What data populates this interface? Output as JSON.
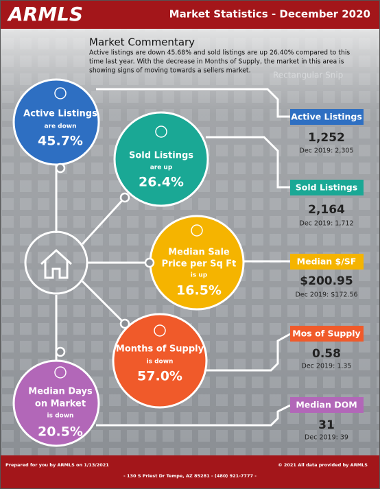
{
  "header": {
    "logo": "ARMLS",
    "title": "Market Statistics - December 2020"
  },
  "commentary": {
    "title": "Market Commentary",
    "lines": [
      "Active listings are down 45.68% and sold listings are up 26.40% compared to this",
      "time last year. With the decrease in Months of Supply, the market in this area is",
      "showing signs of moving towards a sellers market."
    ],
    "overlay": "Rectangular Snip"
  },
  "circles": [
    {
      "label": [
        "Active Listings"
      ],
      "sub": "are down",
      "value": "45.7%"
    },
    {
      "label": [
        "Sold Listings"
      ],
      "sub": "are up",
      "value": "26.4%"
    },
    {
      "label": [
        "Median Sale",
        "Price per Sq Ft"
      ],
      "sub": "is up",
      "value": "16.5%"
    },
    {
      "label": [
        "Months of Supply"
      ],
      "sub": "is down",
      "value": "57.0%"
    },
    {
      "label": [
        "Median Days",
        "on Market"
      ],
      "sub": "is down",
      "value": "20.5%"
    }
  ],
  "stats": [
    {
      "label": "Active Listings",
      "value": "1,252",
      "prior": "Dec 2019: 2,305"
    },
    {
      "label": "Sold Listings",
      "value": "2,164",
      "prior": "Dec 2019: 1,712"
    },
    {
      "label": "Median $/SF",
      "value": "$200.95",
      "prior": "Dec 2019: $172.56"
    },
    {
      "label": "Mos of Supply",
      "value": "0.58",
      "prior": "Dec 2019: 1.35"
    },
    {
      "label": "Median DOM",
      "value": "31",
      "prior": "Dec 2019: 39"
    }
  ],
  "footer": {
    "left": "Prepared for you by ARMLS on 1/13/2021",
    "right": "© 2021 All data provided by ARMLS",
    "address": "- 130 S Priest Dr   Tempe, AZ 85281 - (480) 921-7777 -"
  }
}
